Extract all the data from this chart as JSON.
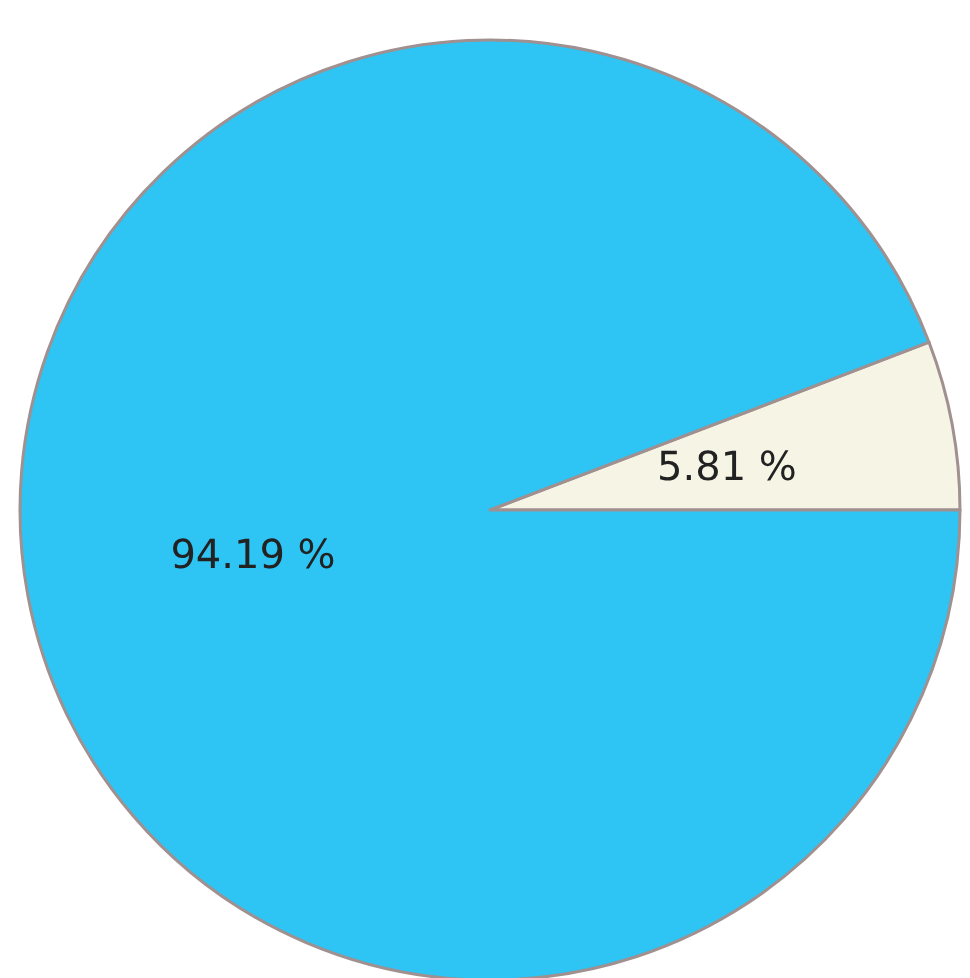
{
  "chart_data": {
    "type": "pie",
    "categories": [
      null,
      null
    ],
    "values": [
      5.81,
      94.19
    ],
    "colors": [
      "#f6f4e4",
      "#2ec4f3"
    ],
    "value_labels": [
      "5.81 %",
      "94.19 %"
    ]
  }
}
